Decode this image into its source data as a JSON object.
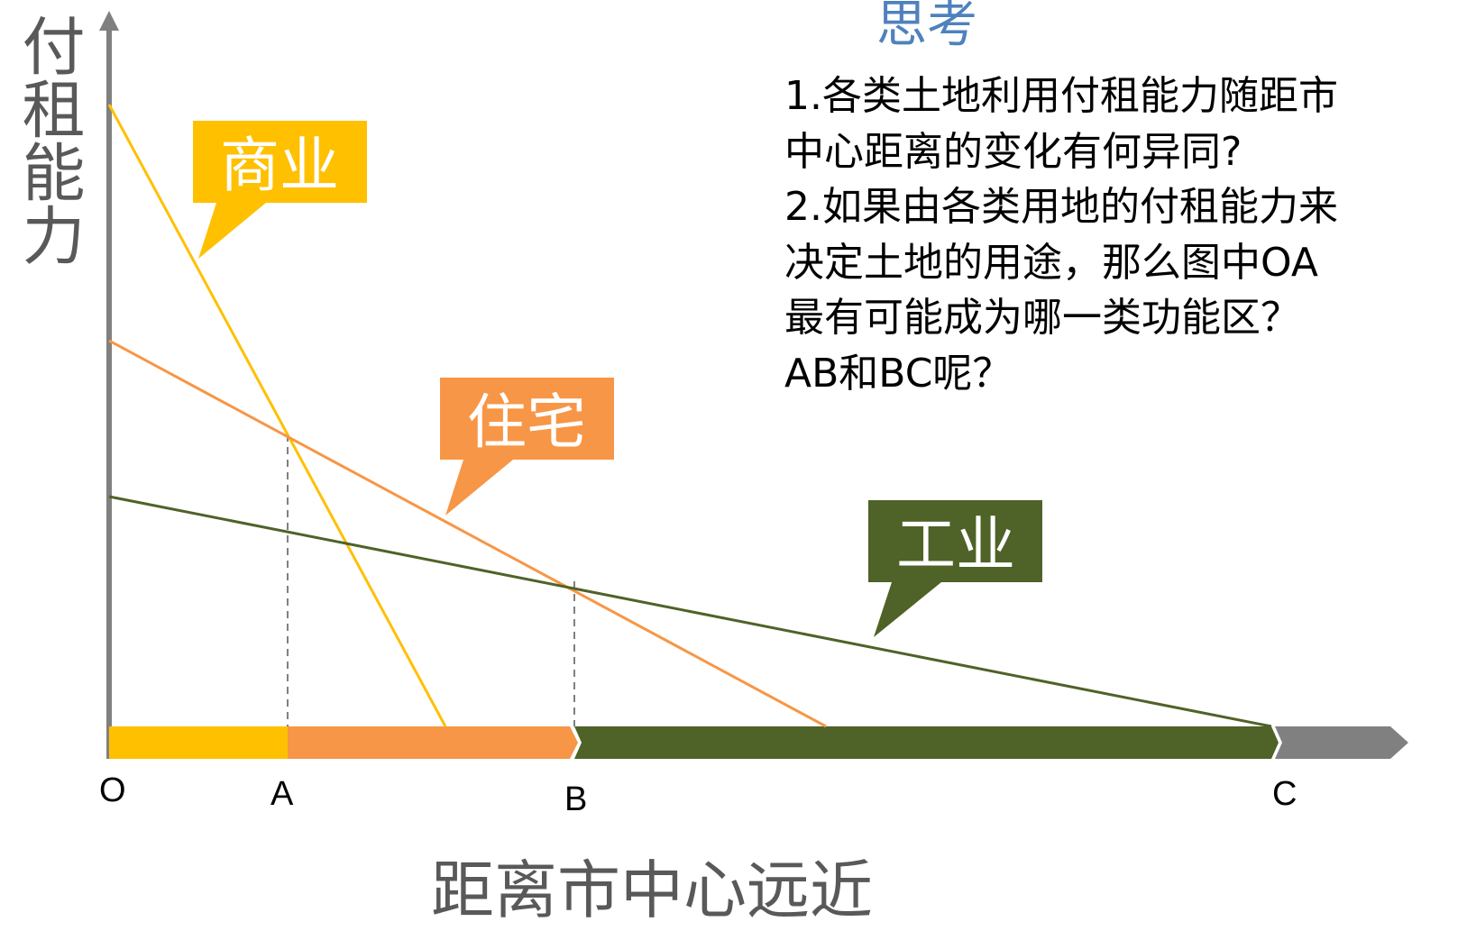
{
  "diagram": {
    "y_axis_label": "付租能力",
    "x_axis_label": "距离市中心远近",
    "ticks": [
      "O",
      "A",
      "B",
      "C"
    ],
    "colors": {
      "commercial": "#ffc000",
      "residential": "#f79646",
      "industrial": "#4f6228",
      "axis": "#808080"
    },
    "callouts": {
      "commercial": "商业",
      "residential": "住宅",
      "industrial": "工业"
    }
  },
  "questions": {
    "title": "思考",
    "q1": "1.各类土地利用付租能力随距市\n中心距离的变化有何异同?",
    "q2": "2.如果由各类用地的付租能力来\n决定土地的用途，那么图中OA\n最有可能成为哪一类功能区？\nAB和BC呢？"
  }
}
